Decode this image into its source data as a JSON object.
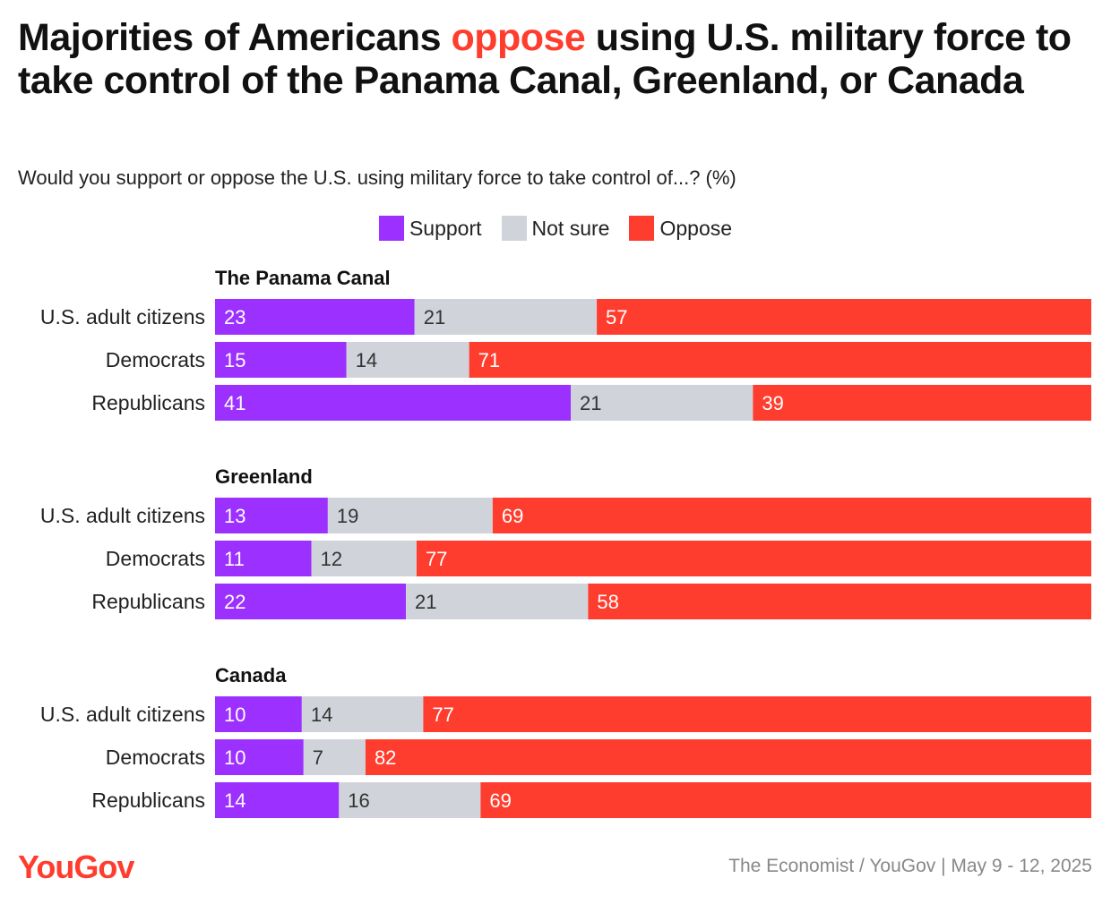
{
  "title": {
    "before": "Majorities of Americans ",
    "highlight": "oppose",
    "after": " using U.S. military force to take control of the Panama Canal, Greenland, or Canada",
    "highlight_color": "#ff3d2e"
  },
  "subtitle": "Would you support or oppose the U.S. using military force to take control of...? (%)",
  "legend": [
    {
      "label": "Support",
      "color": "#9b30ff"
    },
    {
      "label": "Not sure",
      "color": "#d1d3da"
    },
    {
      "label": "Oppose",
      "color": "#ff3d2e"
    }
  ],
  "chart_data": {
    "type": "bar",
    "orientation": "horizontal",
    "stacked": true,
    "series_names": [
      "Support",
      "Not sure",
      "Oppose"
    ],
    "groups": [
      {
        "title": "The Panama Canal",
        "rows": [
          {
            "label": "U.S. adult citizens",
            "values": [
              23,
              21,
              57
            ]
          },
          {
            "label": "Democrats",
            "values": [
              15,
              14,
              71
            ]
          },
          {
            "label": "Republicans",
            "values": [
              41,
              21,
              39
            ]
          }
        ]
      },
      {
        "title": "Greenland",
        "rows": [
          {
            "label": "U.S. adult citizens",
            "values": [
              13,
              19,
              69
            ]
          },
          {
            "label": "Democrats",
            "values": [
              11,
              12,
              77
            ]
          },
          {
            "label": "Republicans",
            "values": [
              22,
              21,
              58
            ]
          }
        ]
      },
      {
        "title": "Canada",
        "rows": [
          {
            "label": "U.S. adult citizens",
            "values": [
              10,
              14,
              77
            ]
          },
          {
            "label": "Democrats",
            "values": [
              10,
              7,
              82
            ]
          },
          {
            "label": "Republicans",
            "values": [
              14,
              16,
              69
            ]
          }
        ]
      }
    ],
    "colors": [
      "#9b30ff",
      "#d1d3da",
      "#ff3d2e"
    ],
    "label_colors": [
      "#ffffff",
      "#333333",
      "#ffffff"
    ],
    "legend_position": "top-center",
    "grid": false
  },
  "footer": {
    "logo": "YouGov",
    "source": "The Economist / YouGov | May 9 - 12, 2025"
  }
}
